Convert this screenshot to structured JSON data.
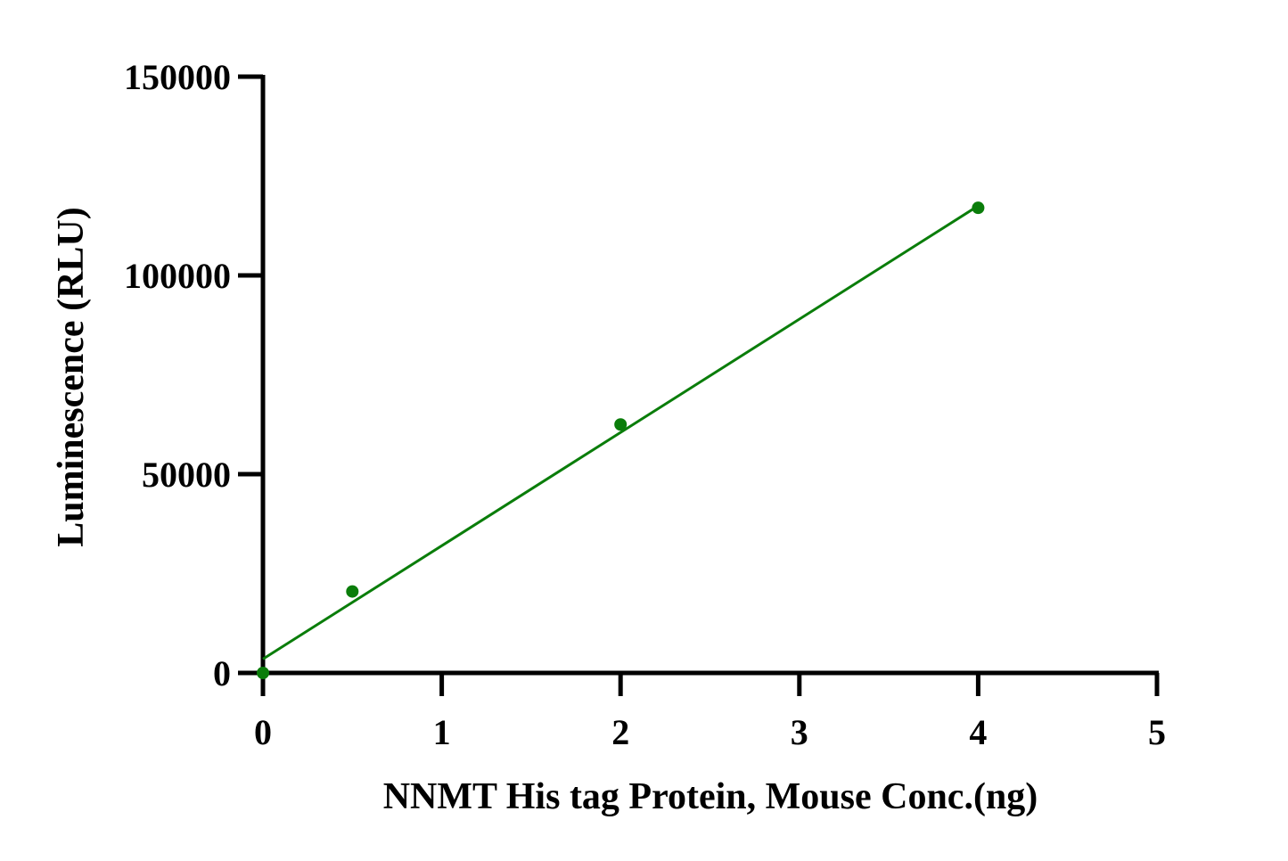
{
  "chart_data": {
    "type": "scatter",
    "title": "",
    "xlabel": "NNMT His tag Protein, Mouse Conc.(ng)",
    "ylabel": "Luminescence (RLU)",
    "xlim": [
      0,
      5
    ],
    "ylim": [
      0,
      150000
    ],
    "x_ticks": [
      "0",
      "1",
      "2",
      "3",
      "4",
      "5"
    ],
    "y_ticks": [
      "0",
      "50000",
      "100000",
      "150000"
    ],
    "grid": false,
    "legend": "none",
    "color": "#0a7d0a",
    "series": [
      {
        "points": [
          {
            "x": 0,
            "y": 0
          },
          {
            "x": 0.5,
            "y": 20500
          },
          {
            "x": 2,
            "y": 62500
          },
          {
            "x": 4,
            "y": 117000
          }
        ]
      }
    ],
    "fit_line": {
      "type": "linear",
      "from": {
        "x": 0,
        "y": 3500
      },
      "to": {
        "x": 4,
        "y": 117500
      }
    }
  }
}
